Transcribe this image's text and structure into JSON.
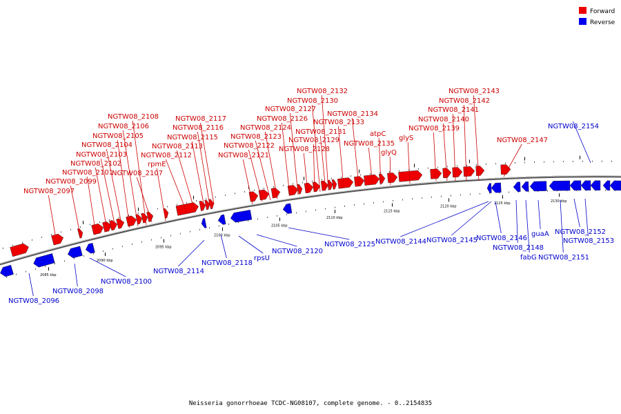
{
  "caption": "Neisseria gonorrhoeae TCDC-NG08107, complete genome. - 0..2154835",
  "legend": [
    {
      "label": "Forward",
      "color": "#ee0000"
    },
    {
      "label": "Reverse",
      "color": "#0000ee"
    }
  ],
  "colors": {
    "forward": "#ee0000",
    "reverse": "#0000ee",
    "backbone": "#888888"
  },
  "ticks": [
    "2085 kbp",
    "2090 kbp",
    "2095 kbp",
    "2100 kbp",
    "2105 kbp",
    "2110 kbp",
    "2115 kbp",
    "2120 kbp",
    "2125 kbp",
    "2130 kbp"
  ],
  "forward_genes": [
    "NGTW08_2097",
    "NGTW08_2099",
    "NGTW08_2101",
    "NGTW08_2102",
    "NGTW08_2103",
    "NGTW08_2104",
    "NGTW08_2105",
    "NGTW08_2106",
    "NGTW08_2108",
    "NGTW08_2107",
    "rpmE",
    "NGTW08_2112",
    "NGTW08_2113",
    "NGTW08_2115",
    "NGTW08_2116",
    "NGTW08_2117",
    "NGTW08_2121",
    "NGTW08_2122",
    "NGTW08_2123",
    "NGTW08_2124",
    "NGTW08_2126",
    "NGTW08_2127",
    "NGTW08_2128",
    "NGTW08_2129",
    "NGTW08_2130",
    "NGTW08_2131",
    "NGTW08_2132",
    "NGTW08_2133",
    "NGTW08_2134",
    "NGTW08_2135",
    "atpC",
    "glyQ",
    "glyS",
    "NGTW08_2139",
    "NGTW08_2140",
    "NGTW08_2141",
    "NGTW08_2142",
    "NGTW08_2143",
    "NGTW08_2147"
  ],
  "reverse_genes": [
    "NGTW08_2096",
    "NGTW08_2098",
    "NGTW08_2100",
    "NGTW08_2114",
    "NGTW08_2118",
    "rpsU",
    "NGTW08_2120",
    "NGTW08_2125",
    "NGTW08_2144",
    "NGTW08_2145",
    "NGTW08_2146",
    "NGTW08_2148",
    "fabG",
    "guaA",
    "NGTW08_2151",
    "NGTW08_2152",
    "NGTW08_2153",
    "NGTW08_2154"
  ]
}
